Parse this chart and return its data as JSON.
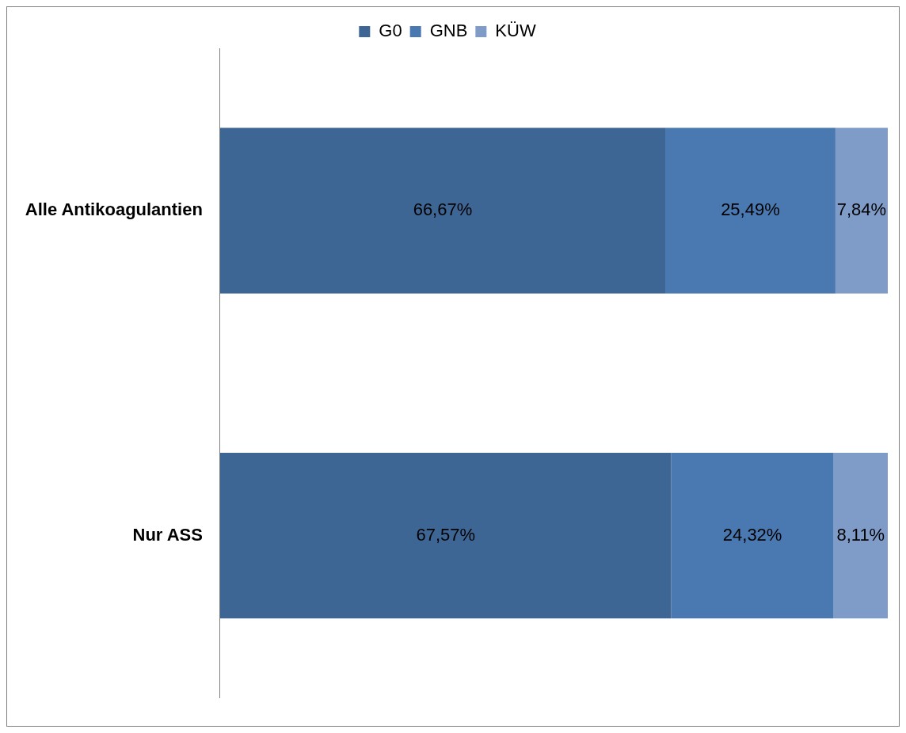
{
  "chart_data": {
    "type": "bar",
    "orientation": "horizontal",
    "stacked": true,
    "categories": [
      "Alle Antikoagulantien",
      "Nur ASS"
    ],
    "series": [
      {
        "name": "G0",
        "color": "#3e6695",
        "values": [
          66.67,
          67.57
        ],
        "value_labels": [
          "66,67%",
          "67,57%"
        ]
      },
      {
        "name": "GNB",
        "color": "#4a78b0",
        "values": [
          25.49,
          24.32
        ],
        "value_labels": [
          "25,49%",
          "24,32%"
        ]
      },
      {
        "name": "KÜW",
        "color": "#7f9cc8",
        "values": [
          7.84,
          8.11
        ],
        "value_labels": [
          "7,84%",
          "8,11%"
        ]
      }
    ],
    "xlim": [
      0,
      100
    ],
    "tick_labels": "y",
    "legend": "top"
  }
}
